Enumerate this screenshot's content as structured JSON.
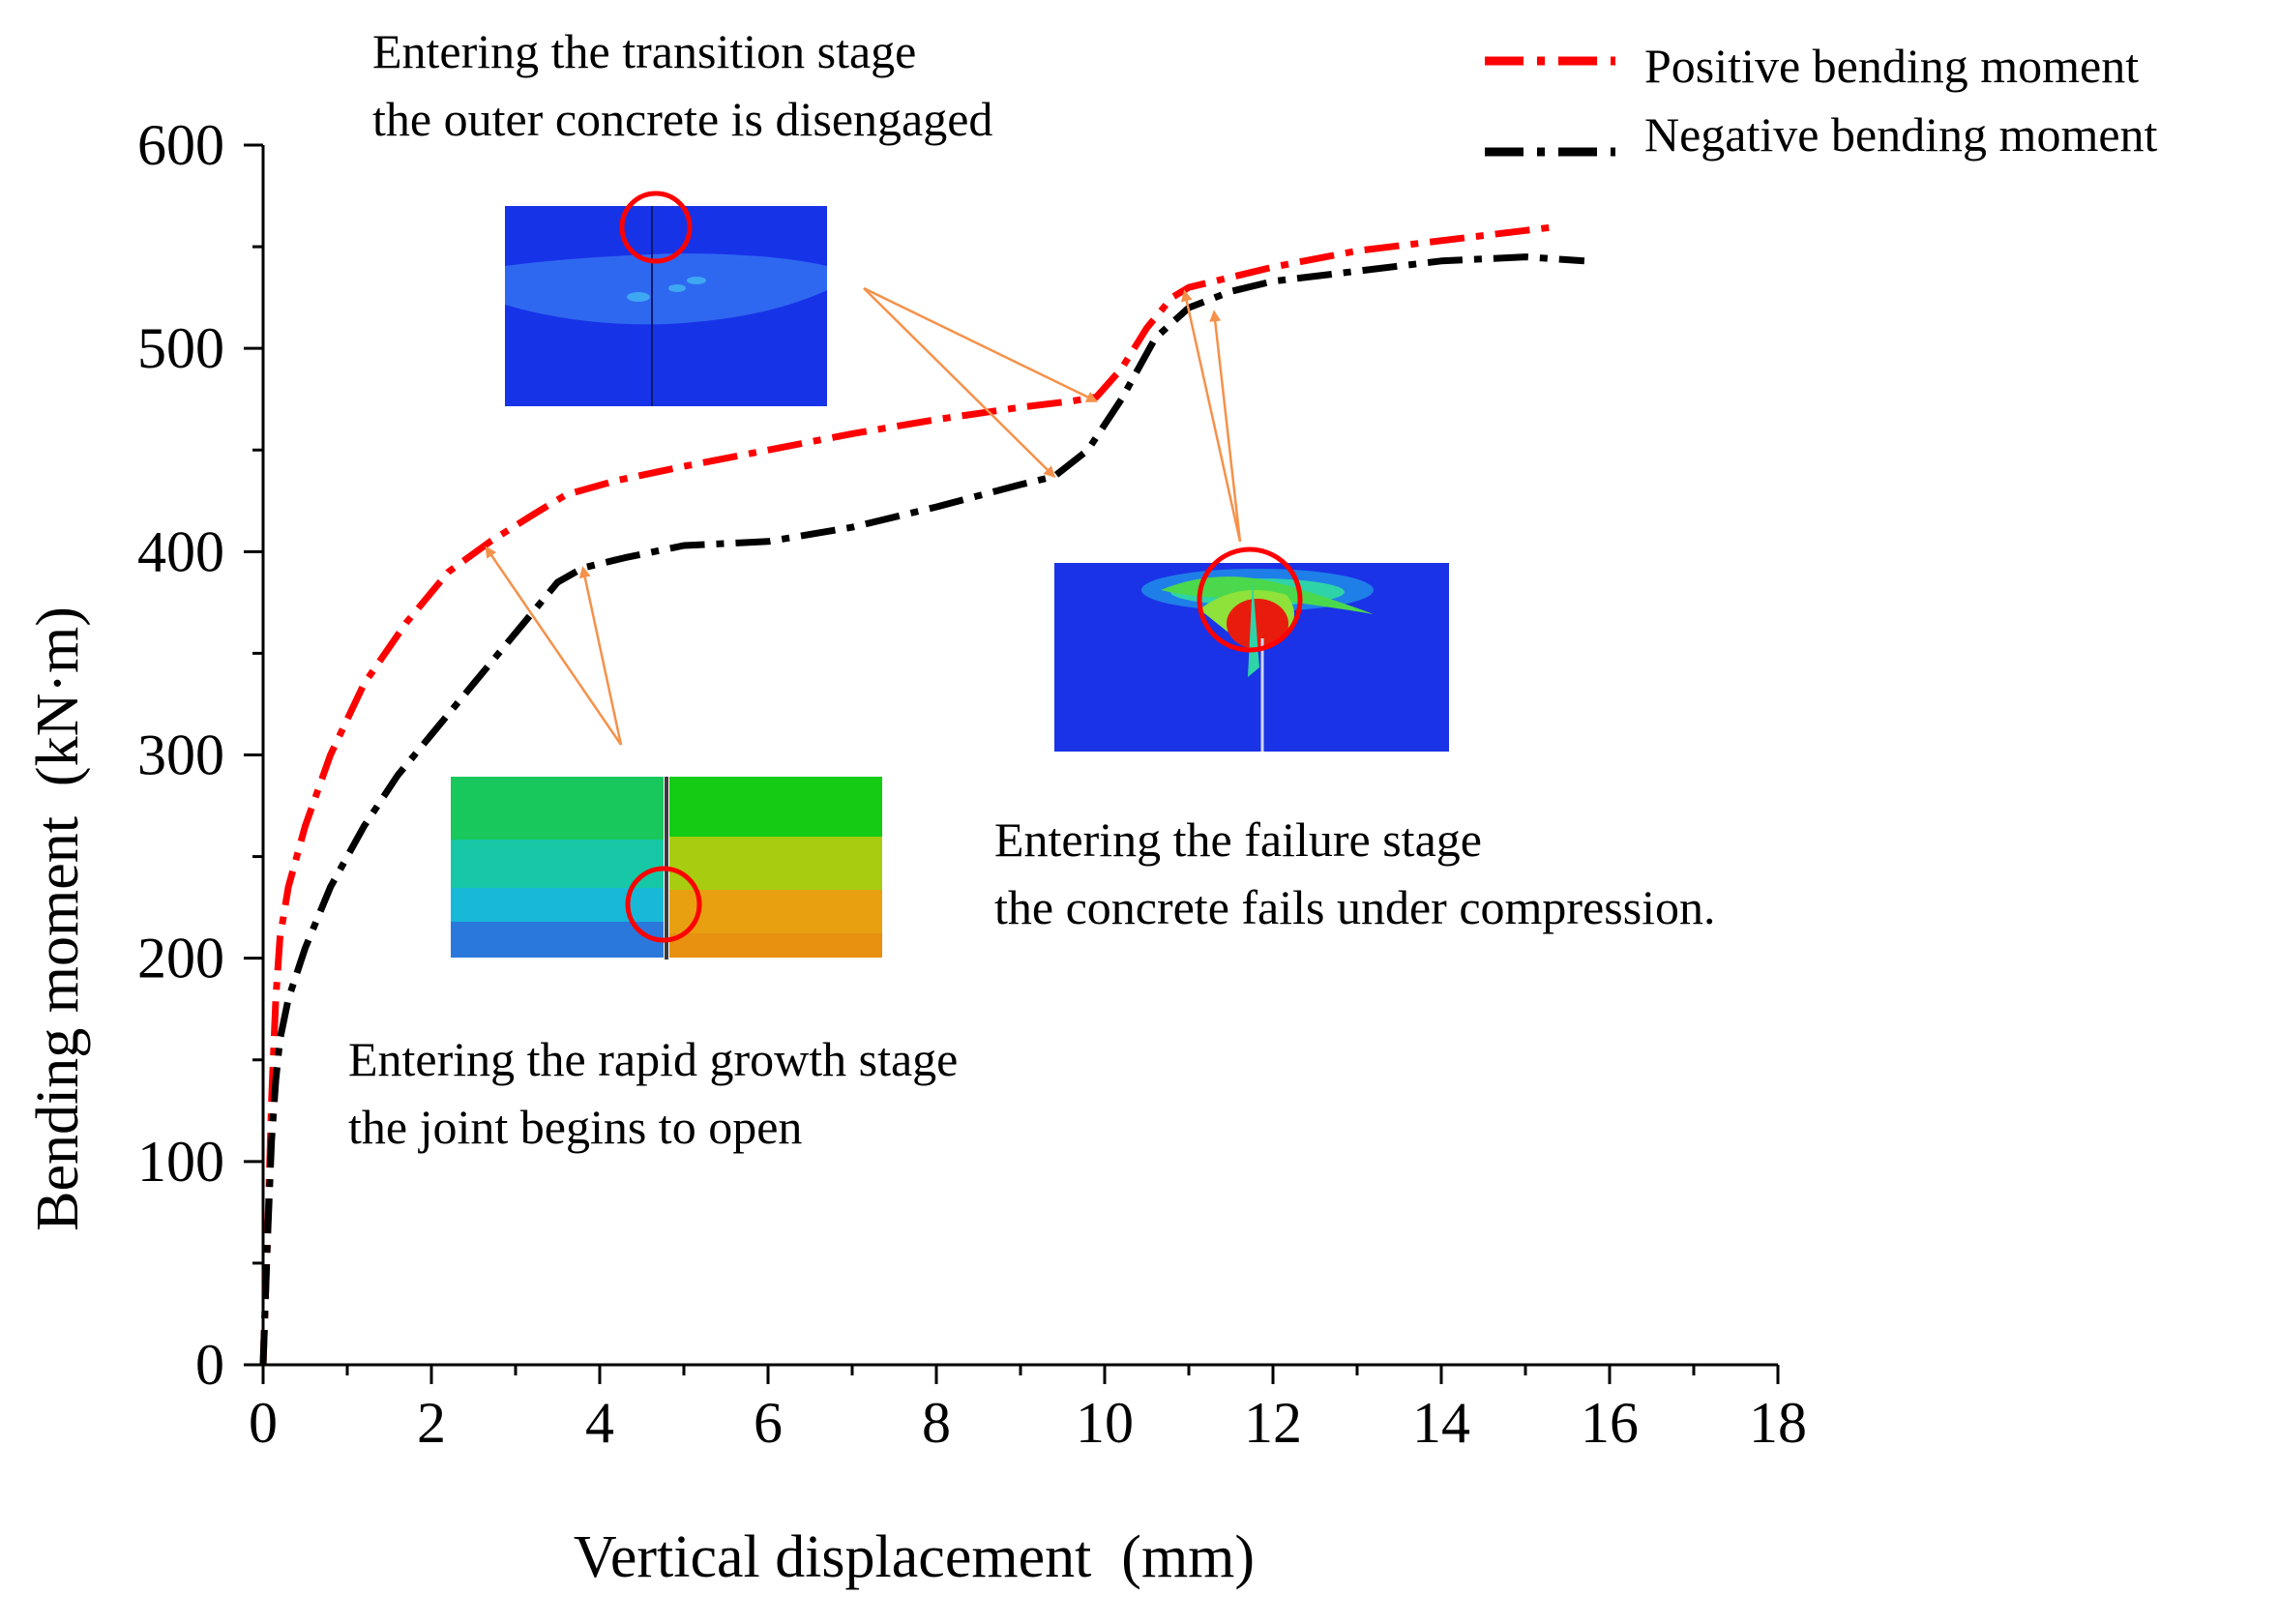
{
  "chart_data": {
    "type": "line",
    "title": "",
    "xlabel": "Vertical displacement  (mm)",
    "ylabel": "Bending moment  (kN·m)",
    "xlim": [
      0,
      18
    ],
    "ylim": [
      0,
      600
    ],
    "xticks": [
      0,
      2,
      4,
      6,
      8,
      10,
      12,
      14,
      16,
      18
    ],
    "yticks": [
      0,
      100,
      200,
      300,
      400,
      500,
      600
    ],
    "xtick_labels": [
      "0",
      "2",
      "4",
      "6",
      "8",
      "10",
      "12",
      "14",
      "16",
      "18"
    ],
    "ytick_labels": [
      "0",
      "100",
      "200",
      "300",
      "400",
      "500",
      "600"
    ],
    "grid": false,
    "legend_position": "top-right",
    "series": [
      {
        "name": "Positive bending moment",
        "color": "#ff0000",
        "style": "dash-dot",
        "x": [
          0,
          0.05,
          0.1,
          0.15,
          0.2,
          0.3,
          0.5,
          0.8,
          1.2,
          1.7,
          2.2,
          2.7,
          3.2,
          3.6,
          4.2,
          5,
          6,
          7,
          8,
          9,
          9.6,
          9.9,
          10.2,
          10.5,
          10.8,
          11,
          11.5,
          12,
          13,
          14,
          15,
          15.4
        ],
        "y": [
          0,
          60,
          130,
          180,
          210,
          235,
          265,
          300,
          335,
          365,
          390,
          405,
          418,
          428,
          435,
          442,
          450,
          458,
          465,
          471,
          474,
          476,
          490,
          510,
          525,
          530,
          535,
          540,
          548,
          553,
          558,
          560
        ]
      },
      {
        "name": "Negative bending moment",
        "color": "#000000",
        "style": "dash-dot",
        "x": [
          0,
          0.05,
          0.1,
          0.15,
          0.2,
          0.3,
          0.5,
          0.8,
          1.2,
          1.6,
          2.0,
          2.5,
          3.0,
          3.5,
          3.8,
          4.3,
          5,
          6,
          7,
          8,
          9,
          9.4,
          9.8,
          10.2,
          10.6,
          11,
          11.5,
          12,
          13,
          14,
          15,
          15.7
        ],
        "y": [
          0,
          60,
          110,
          140,
          160,
          180,
          205,
          235,
          265,
          290,
          310,
          335,
          360,
          385,
          392,
          397,
          403,
          405,
          412,
          422,
          433,
          437,
          450,
          475,
          505,
          520,
          528,
          533,
          538,
          543,
          545,
          543
        ]
      }
    ],
    "annotations": [
      {
        "id": "transition",
        "lines": [
          "Entering the transition stage",
          "the outer concrete is disengaged"
        ]
      },
      {
        "id": "failure",
        "lines": [
          "Entering the failure stage",
          "the concrete fails under compression."
        ]
      },
      {
        "id": "rapid",
        "lines": [
          "Entering the rapid growth stage",
          "the joint begins to open"
        ]
      }
    ],
    "arrow_targets": [
      {
        "group": "transition",
        "x": 9.9,
        "y": 474
      },
      {
        "group": "transition",
        "x": 9.4,
        "y": 437
      },
      {
        "group": "failure",
        "x": 10.95,
        "y": 528
      },
      {
        "group": "failure",
        "x": 11.3,
        "y": 518
      },
      {
        "group": "rapid",
        "x": 2.65,
        "y": 402
      },
      {
        "group": "rapid",
        "x": 3.8,
        "y": 392
      }
    ]
  },
  "colors": {
    "axis": "#000000",
    "arrow": "#f5914a",
    "highlight_circle": "#ff0000"
  },
  "legend_items": [
    "Positive bending moment",
    "Negative bending moment"
  ]
}
